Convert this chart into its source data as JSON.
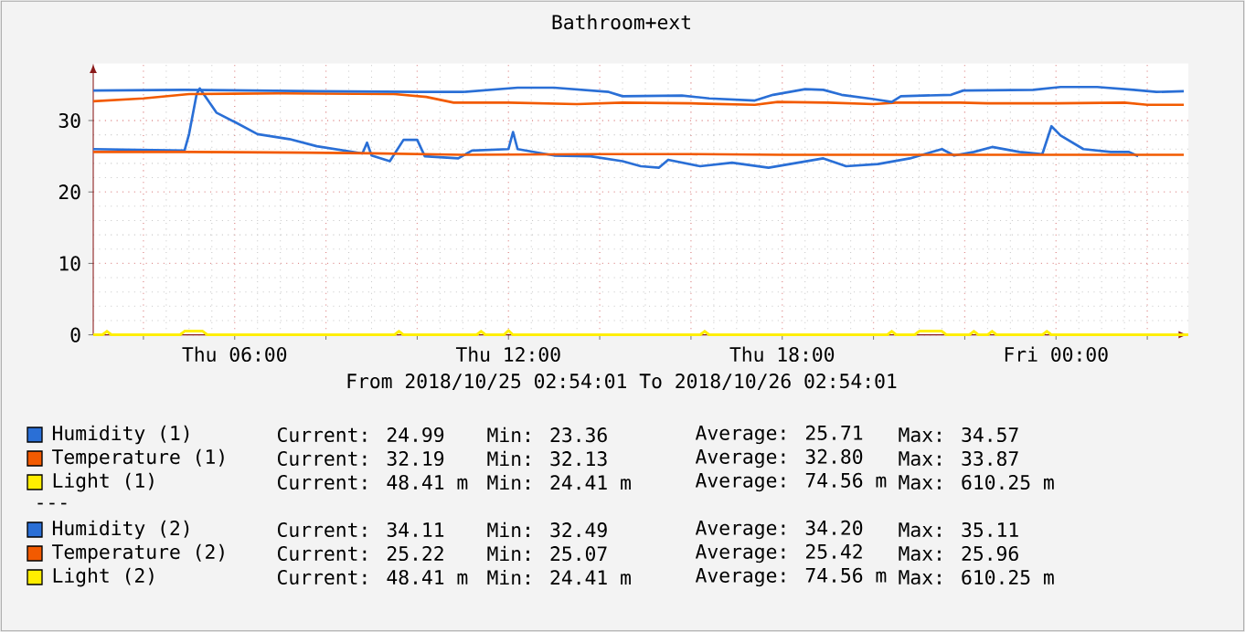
{
  "chart_data": {
    "type": "line",
    "title": "Bathroom+ext",
    "xlabel": "From 2018/10/25 02:54:01 To 2018/10/26 02:54:01",
    "xlim": [
      "2018-10-25T02:54",
      "2018-10-26T02:54"
    ],
    "ylim": [
      0,
      38
    ],
    "xticks": [
      {
        "value": "2018-10-25T04:00",
        "label": null
      },
      {
        "value": "2018-10-25T06:00",
        "label": "Thu 06:00"
      },
      {
        "value": "2018-10-25T08:00",
        "label": null
      },
      {
        "value": "2018-10-25T10:00",
        "label": null
      },
      {
        "value": "2018-10-25T12:00",
        "label": "Thu 12:00"
      },
      {
        "value": "2018-10-25T14:00",
        "label": null
      },
      {
        "value": "2018-10-25T16:00",
        "label": null
      },
      {
        "value": "2018-10-25T18:00",
        "label": "Thu 18:00"
      },
      {
        "value": "2018-10-25T20:00",
        "label": null
      },
      {
        "value": "2018-10-25T22:00",
        "label": null
      },
      {
        "value": "2018-10-26T00:00",
        "label": "Fri 00:00"
      },
      {
        "value": "2018-10-26T02:00",
        "label": null
      }
    ],
    "yticks": [
      0,
      10,
      20,
      30
    ],
    "grid": true,
    "legend": "bottom",
    "marker": "none",
    "series": [
      {
        "name": "Humidity (1)",
        "color": "#2a6fd6",
        "x": [
          "2018-10-25T02:54",
          "2018-10-25T04:54",
          "2018-10-25T05:00",
          "2018-10-25T05:10",
          "2018-10-25T05:14",
          "2018-10-25T05:36",
          "2018-10-25T06:00",
          "2018-10-25T06:30",
          "2018-10-25T07:12",
          "2018-10-25T07:48",
          "2018-10-25T08:48",
          "2018-10-25T08:54",
          "2018-10-25T09:00",
          "2018-10-25T09:24",
          "2018-10-25T09:42",
          "2018-10-25T10:00",
          "2018-10-25T10:10",
          "2018-10-25T10:54",
          "2018-10-25T11:12",
          "2018-10-25T12:00",
          "2018-10-25T12:06",
          "2018-10-25T12:12",
          "2018-10-25T13:00",
          "2018-10-25T13:48",
          "2018-10-25T14:30",
          "2018-10-25T14:54",
          "2018-10-25T15:18",
          "2018-10-25T15:30",
          "2018-10-25T16:12",
          "2018-10-25T16:54",
          "2018-10-25T17:42",
          "2018-10-25T18:54",
          "2018-10-25T19:24",
          "2018-10-25T20:06",
          "2018-10-25T20:48",
          "2018-10-25T21:30",
          "2018-10-25T21:46",
          "2018-10-25T22:12",
          "2018-10-25T22:36",
          "2018-10-25T23:12",
          "2018-10-25T23:42",
          "2018-10-25T23:54",
          "2018-10-26T00:06",
          "2018-10-26T00:36",
          "2018-10-26T01:12",
          "2018-10-26T01:36",
          "2018-10-26T01:48"
        ],
        "values": [
          26.0,
          25.8,
          28.1,
          33.7,
          34.5,
          31.1,
          29.8,
          28.1,
          27.4,
          26.4,
          25.4,
          26.9,
          25.1,
          24.3,
          27.3,
          27.3,
          25.0,
          24.7,
          25.8,
          26.0,
          28.4,
          26.0,
          25.1,
          25.0,
          24.3,
          23.6,
          23.4,
          24.5,
          23.6,
          24.1,
          23.4,
          24.7,
          23.6,
          23.9,
          24.7,
          26.0,
          25.1,
          25.6,
          26.3,
          25.6,
          25.3,
          29.2,
          27.9,
          26.0,
          25.6,
          25.6,
          25.0
        ]
      },
      {
        "name": "Temperature (1)",
        "color": "#f25a00",
        "x": [
          "2018-10-25T02:54",
          "2018-10-25T04:00",
          "2018-10-25T05:00",
          "2018-10-25T07:00",
          "2018-10-25T09:30",
          "2018-10-25T10:12",
          "2018-10-25T10:48",
          "2018-10-25T12:00",
          "2018-10-25T13:30",
          "2018-10-25T14:30",
          "2018-10-25T16:00",
          "2018-10-25T17:24",
          "2018-10-25T17:54",
          "2018-10-25T19:00",
          "2018-10-25T20:00",
          "2018-10-25T20:30",
          "2018-10-25T21:54",
          "2018-10-25T22:30",
          "2018-10-26T00:00",
          "2018-10-26T01:30",
          "2018-10-26T02:00",
          "2018-10-26T02:48"
        ],
        "values": [
          32.7,
          33.1,
          33.7,
          33.8,
          33.7,
          33.3,
          32.5,
          32.5,
          32.3,
          32.5,
          32.4,
          32.2,
          32.6,
          32.5,
          32.3,
          32.5,
          32.5,
          32.4,
          32.4,
          32.5,
          32.2,
          32.2
        ]
      },
      {
        "name": "Light (1)",
        "color": "#ffee00",
        "x": [
          "2018-10-25T02:54",
          "2018-10-25T03:06",
          "2018-10-25T03:12",
          "2018-10-25T03:18",
          "2018-10-25T04:48",
          "2018-10-25T04:54",
          "2018-10-25T05:18",
          "2018-10-25T05:24",
          "2018-10-25T09:30",
          "2018-10-25T09:36",
          "2018-10-25T09:42",
          "2018-10-25T11:18",
          "2018-10-25T11:24",
          "2018-10-25T11:30",
          "2018-10-25T11:54",
          "2018-10-25T12:00",
          "2018-10-25T12:06",
          "2018-10-25T16:12",
          "2018-10-25T16:18",
          "2018-10-25T16:24",
          "2018-10-25T20:18",
          "2018-10-25T20:24",
          "2018-10-25T20:30",
          "2018-10-25T20:54",
          "2018-10-25T21:00",
          "2018-10-25T21:30",
          "2018-10-25T21:36",
          "2018-10-25T22:06",
          "2018-10-25T22:12",
          "2018-10-25T22:18",
          "2018-10-25T22:30",
          "2018-10-25T22:36",
          "2018-10-25T22:42",
          "2018-10-25T23:42",
          "2018-10-25T23:48",
          "2018-10-25T23:54",
          "2018-10-26T02:54"
        ],
        "values": [
          0,
          0,
          0.5,
          0,
          0,
          0.5,
          0.5,
          0,
          0,
          0.5,
          0,
          0,
          0.5,
          0,
          0,
          0.6,
          0,
          0,
          0.5,
          0,
          0,
          0.5,
          0,
          0,
          0.5,
          0.5,
          0,
          0,
          0.5,
          0,
          0,
          0.5,
          0,
          0,
          0.5,
          0,
          0
        ]
      },
      {
        "name": "Humidity (2)",
        "color": "#2a6fd6",
        "x": [
          "2018-10-25T02:54",
          "2018-10-25T04:54",
          "2018-10-25T07:48",
          "2018-10-25T10:00",
          "2018-10-25T11:00",
          "2018-10-25T12:12",
          "2018-10-25T13:00",
          "2018-10-25T14:12",
          "2018-10-25T14:30",
          "2018-10-25T15:48",
          "2018-10-25T16:24",
          "2018-10-25T17:24",
          "2018-10-25T17:48",
          "2018-10-25T18:30",
          "2018-10-25T18:54",
          "2018-10-25T19:18",
          "2018-10-25T20:00",
          "2018-10-25T20:24",
          "2018-10-25T20:36",
          "2018-10-25T21:42",
          "2018-10-25T21:58",
          "2018-10-25T23:30",
          "2018-10-26T00:06",
          "2018-10-26T00:54",
          "2018-10-26T01:42",
          "2018-10-26T02:12",
          "2018-10-26T02:48"
        ],
        "values": [
          34.2,
          34.3,
          34.1,
          34.0,
          34.0,
          34.6,
          34.6,
          34.0,
          33.4,
          33.5,
          33.1,
          32.8,
          33.6,
          34.4,
          34.3,
          33.6,
          33.0,
          32.6,
          33.4,
          33.6,
          34.2,
          34.3,
          34.7,
          34.7,
          34.3,
          34.0,
          34.1
        ]
      },
      {
        "name": "Temperature (2)",
        "color": "#f25a00",
        "x": [
          "2018-10-25T02:54",
          "2018-10-25T05:00",
          "2018-10-25T07:30",
          "2018-10-25T09:00",
          "2018-10-25T11:00",
          "2018-10-25T14:00",
          "2018-10-25T16:00",
          "2018-10-25T18:00",
          "2018-10-25T21:00",
          "2018-10-26T00:00",
          "2018-10-26T02:48"
        ],
        "values": [
          25.6,
          25.6,
          25.5,
          25.4,
          25.2,
          25.3,
          25.3,
          25.2,
          25.2,
          25.2,
          25.2
        ]
      },
      {
        "name": "Light (2)",
        "color": "#ffee00",
        "x": [
          "2018-10-25T02:54",
          "2018-10-25T03:06",
          "2018-10-25T03:12",
          "2018-10-25T03:18",
          "2018-10-25T04:48",
          "2018-10-25T04:54",
          "2018-10-25T05:18",
          "2018-10-25T05:24",
          "2018-10-25T09:30",
          "2018-10-25T09:36",
          "2018-10-25T09:42",
          "2018-10-25T11:18",
          "2018-10-25T11:24",
          "2018-10-25T11:30",
          "2018-10-25T11:54",
          "2018-10-25T12:00",
          "2018-10-25T12:06",
          "2018-10-25T16:12",
          "2018-10-25T16:18",
          "2018-10-25T16:24",
          "2018-10-25T20:18",
          "2018-10-25T20:24",
          "2018-10-25T20:30",
          "2018-10-25T20:54",
          "2018-10-25T21:00",
          "2018-10-25T21:30",
          "2018-10-25T21:36",
          "2018-10-25T22:06",
          "2018-10-25T22:12",
          "2018-10-25T22:18",
          "2018-10-25T22:30",
          "2018-10-25T22:36",
          "2018-10-25T22:42",
          "2018-10-25T23:42",
          "2018-10-25T23:48",
          "2018-10-25T23:54",
          "2018-10-26T02:54"
        ],
        "values": [
          0,
          0,
          0.5,
          0,
          0,
          0.5,
          0.5,
          0,
          0,
          0.5,
          0,
          0,
          0.5,
          0,
          0,
          0.6,
          0,
          0,
          0.5,
          0,
          0,
          0.5,
          0,
          0,
          0.5,
          0.5,
          0,
          0,
          0.5,
          0,
          0,
          0.5,
          0,
          0,
          0.5,
          0,
          0
        ]
      }
    ],
    "annotations": [
      "Current: 24.99",
      "Min: 23.36",
      "Average: 25.71",
      "Max: 34.57",
      "Current: 32.19",
      "Min: 32.13",
      "Average: 32.80",
      "Max: 33.87",
      "Current: 48.41 m",
      "Min: 24.41 m",
      "Average: 74.56 m",
      "Max: 610.25 m",
      "---",
      "Current: 34.11",
      "Min: 32.49",
      "Average: 34.20",
      "Max: 35.11",
      "Current: 25.22",
      "Min: 25.07",
      "Average: 25.42",
      "Max: 25.96",
      "Current: 48.41 m",
      "Min: 24.41 m",
      "Average: 74.56 m",
      "Max: 610.25 m"
    ]
  }
}
